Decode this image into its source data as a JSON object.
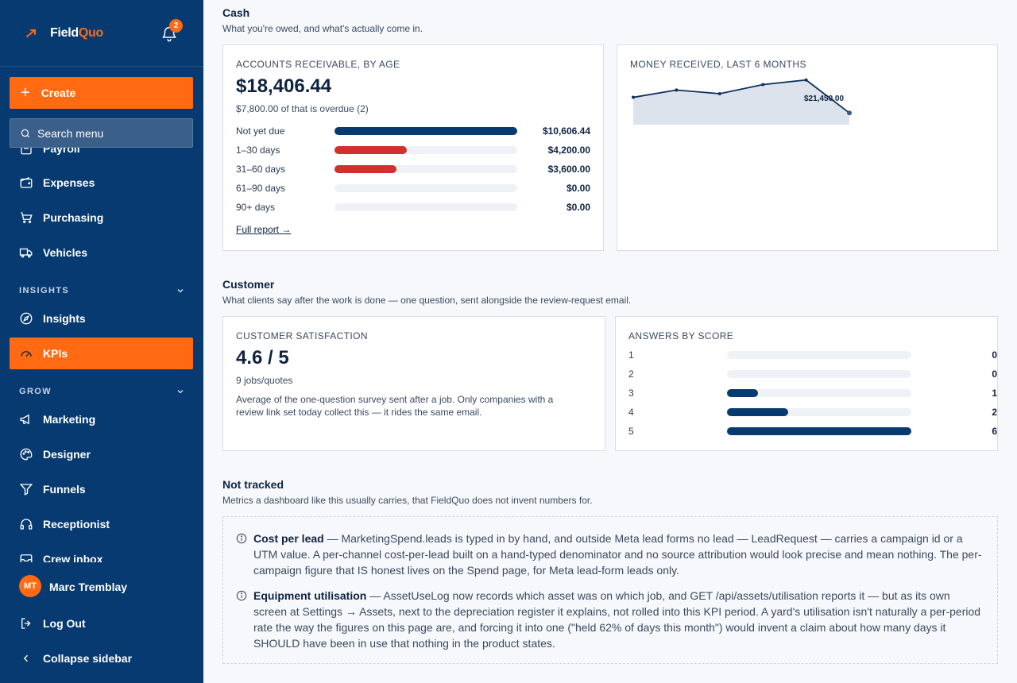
{
  "brand": {
    "name_a": "Field",
    "name_b": "Quo",
    "notifications": "2",
    "accent": "#ff6a13",
    "navy": "#063a70"
  },
  "sidebar": {
    "create_label": "Create",
    "search_placeholder": "Search menu",
    "partial_top_item": "Payroll",
    "items_top": [
      "Expenses",
      "Purchasing",
      "Vehicles"
    ],
    "section_insights": "INSIGHTS",
    "insights_items": [
      "Insights",
      "KPIs"
    ],
    "section_grow": "GROW",
    "grow_items": [
      "Marketing",
      "Designer",
      "Funnels",
      "Receptionist",
      "Crew inbox"
    ],
    "user_initials": "MT",
    "user_name": "Marc Tremblay",
    "logout": "Log Out",
    "collapse": "Collapse sidebar"
  },
  "cash": {
    "title": "Cash",
    "subtitle": "What you're owed, and what's actually come in.",
    "ar_label": "ACCOUNTS RECEIVABLE, BY AGE",
    "ar_total": "$18,406.44",
    "ar_overdue": "$7,800.00 of that is overdue (2)",
    "ar_rows": [
      {
        "label": "Not yet due",
        "amount": "$10,606.44",
        "fraction": 1.0,
        "color": "#073a6e"
      },
      {
        "label": "1–30 days",
        "amount": "$4,200.00",
        "fraction": 0.396,
        "color": "#d0312d"
      },
      {
        "label": "31–60 days",
        "amount": "$3,600.00",
        "fraction": 0.339,
        "color": "#d0312d"
      },
      {
        "label": "61–90 days",
        "amount": "$0.00",
        "fraction": 0,
        "color": "#d0312d"
      },
      {
        "label": "90+ days",
        "amount": "$0.00",
        "fraction": 0,
        "color": "#d0312d"
      }
    ],
    "full_report": "Full report →",
    "received_label": "MONEY RECEIVED, LAST 6 MONTHS",
    "received_values": [
      30000,
      34000,
      32000,
      37000,
      39500,
      21450
    ],
    "received_last_label": "$21,450.00"
  },
  "customer": {
    "title": "Customer",
    "subtitle": "What clients say after the work is done — one question, sent alongside the review-request email.",
    "csat_label": "CUSTOMER SATISFACTION",
    "csat_value": "4.6 / 5",
    "csat_count": "9 jobs/quotes",
    "csat_note_1": "Average of the one-question survey sent after a job. Only companies with a",
    "csat_note_2": "review link set today collect this — it rides the same email.",
    "scores_label": "ANSWERS BY SCORE",
    "scores": [
      {
        "score": "1",
        "count": "0",
        "fraction": 0
      },
      {
        "score": "2",
        "count": "0",
        "fraction": 0
      },
      {
        "score": "3",
        "count": "1",
        "fraction": 0.1667
      },
      {
        "score": "4",
        "count": "2",
        "fraction": 0.3333
      },
      {
        "score": "5",
        "count": "6",
        "fraction": 1.0
      }
    ]
  },
  "not_tracked": {
    "title": "Not tracked",
    "subtitle": "Metrics a dashboard like this usually carries, that FieldQuo does not invent numbers for.",
    "item1_title": "Cost per lead",
    "item1_text": " — MarketingSpend.leads is typed in by hand, and outside Meta lead forms no lead — LeadRequest — carries a campaign id or a UTM value. A per-channel cost-per-lead built on a hand-typed denominator and no source attribution would look precise and mean nothing. The per-campaign figure that IS honest lives on the Spend page, for Meta lead-form leads only.",
    "item2_title": "Equipment utilisation",
    "item2_text": " — AssetUseLog now records which asset was on which job, and GET /api/assets/utilisation reports it — but as its own screen at Settings → Assets, next to the depreciation register it explains, not rolled into this KPI period. A yard's utilisation isn't naturally a per-period rate the way the figures on this page are, and forcing it into one (\"held 62% of days this month\") would invent a claim about how many days it SHOULD have been in use that nothing in the product states."
  }
}
